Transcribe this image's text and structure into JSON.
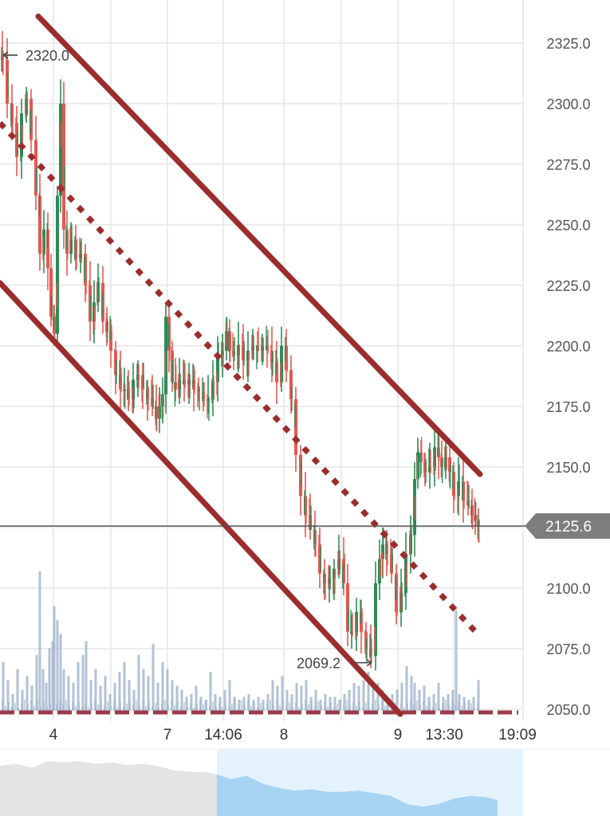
{
  "chart_data": {
    "type": "candlestick",
    "ylim": [
      2045,
      2336
    ],
    "y_ticks": [
      2325.0,
      2300.0,
      2275.0,
      2250.0,
      2225.0,
      2200.0,
      2175.0,
      2150.0,
      2100.0,
      2075.0,
      2050.0
    ],
    "y_tick_labels": [
      "2325.0",
      "2300.0",
      "2275.0",
      "2250.0",
      "2225.0",
      "2200.0",
      "2175.0",
      "2150.0",
      "2100.0",
      "2075.0",
      "2050.0"
    ],
    "x_tick_labels": [
      "4",
      "7",
      "14:06",
      "8",
      "9",
      "13:30",
      "19:09"
    ],
    "current_price": 2125.6,
    "current_price_label": "2125.6",
    "high_marker": {
      "value": 2320.0,
      "label": "2320.0"
    },
    "low_marker": {
      "value": 2069.2,
      "label": "2069.2"
    },
    "grid": true,
    "up_color": "#2e8b57",
    "down_color": "#e05a52",
    "volume_color": "#9fb3cc",
    "trendline_color": "#9b2d2d",
    "price_path": [
      [
        0,
        2320
      ],
      [
        6,
        2318
      ],
      [
        12,
        2300
      ],
      [
        18,
        2292
      ],
      [
        24,
        2278
      ],
      [
        30,
        2296
      ],
      [
        36,
        2302
      ],
      [
        42,
        2285
      ],
      [
        48,
        2262
      ],
      [
        52,
        2238
      ],
      [
        58,
        2248
      ],
      [
        62,
        2232
      ],
      [
        66,
        2212
      ],
      [
        70,
        2205
      ],
      [
        74,
        2262
      ],
      [
        78,
        2300
      ],
      [
        82,
        2248
      ],
      [
        86,
        2238
      ],
      [
        92,
        2244
      ],
      [
        98,
        2236
      ],
      [
        104,
        2238
      ],
      [
        110,
        2225
      ],
      [
        116,
        2210
      ],
      [
        120,
        2218
      ],
      [
        126,
        2226
      ],
      [
        132,
        2210
      ],
      [
        136,
        2206
      ],
      [
        142,
        2198
      ],
      [
        148,
        2188
      ],
      [
        154,
        2182
      ],
      [
        158,
        2182
      ],
      [
        164,
        2178
      ],
      [
        170,
        2186
      ],
      [
        176,
        2188
      ],
      [
        182,
        2182
      ],
      [
        188,
        2178
      ],
      [
        194,
        2175
      ],
      [
        198,
        2170
      ],
      [
        202,
        2175
      ],
      [
        206,
        2180
      ],
      [
        210,
        2212
      ],
      [
        214,
        2198
      ],
      [
        218,
        2185
      ],
      [
        222,
        2182
      ],
      [
        228,
        2186
      ],
      [
        234,
        2184
      ],
      [
        240,
        2186
      ],
      [
        246,
        2182
      ],
      [
        252,
        2181
      ],
      [
        258,
        2178
      ],
      [
        264,
        2178
      ],
      [
        270,
        2185
      ],
      [
        276,
        2196
      ],
      [
        282,
        2198
      ],
      [
        286,
        2206
      ],
      [
        290,
        2198
      ],
      [
        296,
        2196
      ],
      [
        302,
        2200
      ],
      [
        308,
        2194
      ],
      [
        314,
        2198
      ],
      [
        320,
        2200
      ],
      [
        326,
        2198
      ],
      [
        332,
        2200
      ],
      [
        338,
        2198
      ],
      [
        344,
        2193
      ],
      [
        350,
        2185
      ],
      [
        356,
        2200
      ],
      [
        362,
        2190
      ],
      [
        368,
        2178
      ],
      [
        374,
        2155
      ],
      [
        380,
        2138
      ],
      [
        386,
        2130
      ],
      [
        392,
        2124
      ],
      [
        398,
        2118
      ],
      [
        404,
        2106
      ],
      [
        410,
        2102
      ],
      [
        416,
        2104
      ],
      [
        422,
        2108
      ],
      [
        428,
        2112
      ],
      [
        434,
        2102
      ],
      [
        438,
        2082
      ],
      [
        444,
        2082
      ],
      [
        450,
        2090
      ],
      [
        456,
        2082
      ],
      [
        462,
        2075
      ],
      [
        468,
        2072
      ],
      [
        474,
        2102
      ],
      [
        478,
        2112
      ],
      [
        482,
        2118
      ],
      [
        488,
        2114
      ],
      [
        494,
        2106
      ],
      [
        500,
        2090
      ],
      [
        506,
        2098
      ],
      [
        512,
        2114
      ],
      [
        518,
        2122
      ],
      [
        522,
        2145
      ],
      [
        526,
        2156
      ],
      [
        530,
        2152
      ],
      [
        536,
        2148
      ],
      [
        542,
        2150
      ],
      [
        548,
        2158
      ],
      [
        552,
        2154
      ],
      [
        556,
        2150
      ],
      [
        562,
        2154
      ],
      [
        566,
        2148
      ],
      [
        572,
        2138
      ],
      [
        578,
        2144
      ],
      [
        584,
        2136
      ],
      [
        590,
        2134
      ],
      [
        594,
        2130
      ],
      [
        598,
        2128
      ],
      [
        602,
        2126
      ]
    ],
    "volume_bars": [
      [
        4,
        0.35
      ],
      [
        10,
        0.22
      ],
      [
        16,
        0.12
      ],
      [
        22,
        0.3
      ],
      [
        28,
        0.15
      ],
      [
        34,
        0.25
      ],
      [
        40,
        0.18
      ],
      [
        46,
        0.4
      ],
      [
        50,
        1.0
      ],
      [
        54,
        0.3
      ],
      [
        58,
        0.2
      ],
      [
        62,
        0.45
      ],
      [
        66,
        0.5
      ],
      [
        68,
        0.75
      ],
      [
        72,
        0.65
      ],
      [
        76,
        0.55
      ],
      [
        80,
        0.3
      ],
      [
        86,
        0.25
      ],
      [
        92,
        0.2
      ],
      [
        98,
        0.35
      ],
      [
        104,
        0.4
      ],
      [
        108,
        0.5
      ],
      [
        114,
        0.22
      ],
      [
        120,
        0.3
      ],
      [
        126,
        0.18
      ],
      [
        132,
        0.25
      ],
      [
        138,
        0.12
      ],
      [
        144,
        0.2
      ],
      [
        150,
        0.28
      ],
      [
        156,
        0.35
      ],
      [
        162,
        0.22
      ],
      [
        168,
        0.15
      ],
      [
        174,
        0.4
      ],
      [
        180,
        0.3
      ],
      [
        186,
        0.25
      ],
      [
        192,
        0.48
      ],
      [
        198,
        0.2
      ],
      [
        204,
        0.35
      ],
      [
        210,
        0.3
      ],
      [
        216,
        0.22
      ],
      [
        222,
        0.18
      ],
      [
        228,
        0.15
      ],
      [
        234,
        0.1
      ],
      [
        240,
        0.12
      ],
      [
        246,
        0.18
      ],
      [
        252,
        0.1
      ],
      [
        258,
        0.08
      ],
      [
        264,
        0.28
      ],
      [
        270,
        0.12
      ],
      [
        276,
        0.1
      ],
      [
        282,
        0.15
      ],
      [
        288,
        0.22
      ],
      [
        294,
        0.1
      ],
      [
        300,
        0.08
      ],
      [
        306,
        0.1
      ],
      [
        312,
        0.12
      ],
      [
        318,
        0.08
      ],
      [
        324,
        0.1
      ],
      [
        330,
        0.08
      ],
      [
        336,
        0.12
      ],
      [
        342,
        0.22
      ],
      [
        348,
        0.18
      ],
      [
        354,
        0.25
      ],
      [
        360,
        0.15
      ],
      [
        366,
        0.12
      ],
      [
        372,
        0.2
      ],
      [
        378,
        0.18
      ],
      [
        384,
        0.22
      ],
      [
        390,
        0.1
      ],
      [
        396,
        0.15
      ],
      [
        402,
        0.08
      ],
      [
        408,
        0.12
      ],
      [
        414,
        0.1
      ],
      [
        420,
        0.1
      ],
      [
        426,
        0.08
      ],
      [
        432,
        0.12
      ],
      [
        438,
        0.15
      ],
      [
        444,
        0.2
      ],
      [
        450,
        0.18
      ],
      [
        456,
        0.22
      ],
      [
        462,
        0.28
      ],
      [
        468,
        0.18
      ],
      [
        474,
        0.2
      ],
      [
        480,
        0.15
      ],
      [
        486,
        0.1
      ],
      [
        492,
        0.12
      ],
      [
        498,
        0.15
      ],
      [
        504,
        0.2
      ],
      [
        510,
        0.32
      ],
      [
        516,
        0.25
      ],
      [
        520,
        0.2
      ],
      [
        526,
        0.15
      ],
      [
        532,
        0.18
      ],
      [
        538,
        0.1
      ],
      [
        544,
        0.12
      ],
      [
        550,
        0.2
      ],
      [
        556,
        0.1
      ],
      [
        562,
        0.12
      ],
      [
        568,
        0.15
      ],
      [
        572,
        0.72
      ],
      [
        576,
        0.12
      ],
      [
        582,
        0.1
      ],
      [
        588,
        0.08
      ],
      [
        594,
        0.1
      ],
      [
        600,
        0.22
      ]
    ],
    "trendlines": [
      {
        "style": "solid",
        "x1": 48,
        "y1": 2336,
        "x2": 602,
        "y2": 2147
      },
      {
        "style": "dotted",
        "x1": 0,
        "y1": 2292,
        "x2": 602,
        "y2": 2080
      },
      {
        "style": "solid",
        "x1": 0,
        "y1": 2226,
        "x2": 502,
        "y2": 2048
      }
    ],
    "navigator": {
      "background_color": "#e4e4e4",
      "selected_color": "#a8d4f4",
      "selected_range_bg": "#e3f2fd",
      "series": [
        [
          0,
          0.75
        ],
        [
          20,
          0.78
        ],
        [
          40,
          0.72
        ],
        [
          60,
          0.82
        ],
        [
          80,
          0.8
        ],
        [
          100,
          0.82
        ],
        [
          120,
          0.78
        ],
        [
          140,
          0.8
        ],
        [
          160,
          0.76
        ],
        [
          180,
          0.78
        ],
        [
          200,
          0.74
        ],
        [
          220,
          0.68
        ],
        [
          240,
          0.66
        ],
        [
          260,
          0.65
        ],
        [
          272,
          0.62
        ],
        [
          290,
          0.55
        ],
        [
          310,
          0.6
        ],
        [
          330,
          0.48
        ],
        [
          350,
          0.42
        ],
        [
          370,
          0.38
        ],
        [
          390,
          0.4
        ],
        [
          410,
          0.36
        ],
        [
          430,
          0.36
        ],
        [
          450,
          0.38
        ],
        [
          470,
          0.34
        ],
        [
          490,
          0.3
        ],
        [
          510,
          0.18
        ],
        [
          530,
          0.14
        ],
        [
          550,
          0.18
        ],
        [
          570,
          0.26
        ],
        [
          590,
          0.3
        ],
        [
          610,
          0.28
        ],
        [
          624,
          0.24
        ]
      ],
      "selected_from": 272,
      "selected_to": 656
    }
  }
}
